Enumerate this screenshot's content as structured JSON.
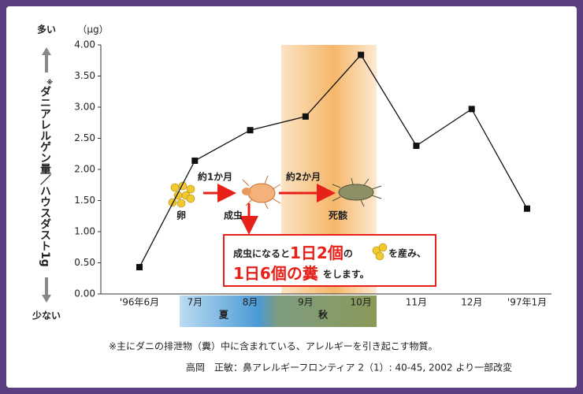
{
  "chart_data": {
    "type": "line",
    "unit_label": "（μg）",
    "top_label": "多い",
    "bottom_label": "少ない",
    "y_axis_note": "※",
    "y_axis_label": "ダニアレルゲン量／ハウスダスト1g",
    "categories": [
      "'96年6月",
      "7月",
      "8月",
      "9月",
      "10月",
      "11月",
      "12月",
      "'97年1月"
    ],
    "values": [
      0.43,
      2.14,
      2.63,
      2.85,
      3.84,
      2.38,
      2.97,
      1.37
    ],
    "color": "#111111",
    "ylim": [
      0,
      4
    ],
    "yticks": [
      {
        "value": 0,
        "label": "0.00"
      },
      {
        "value": 0.5,
        "label": "0.50"
      },
      {
        "value": 1,
        "label": "1.00"
      },
      {
        "value": 1.5,
        "label": "1.50"
      },
      {
        "value": 2,
        "label": "2.00"
      },
      {
        "value": 2.5,
        "label": "2.50"
      },
      {
        "value": 3,
        "label": "3.00"
      },
      {
        "value": 3.5,
        "label": "3.50"
      },
      {
        "value": 4,
        "label": "4.00"
      }
    ],
    "seasons": [
      "夏",
      "秋"
    ],
    "stages": [
      "卵",
      "成虫",
      "死骸"
    ],
    "durations": [
      "約1か月",
      "約2か月"
    ],
    "callout": [
      "成虫になると",
      "1日2個",
      "の",
      "を産み、",
      "1日6個の糞",
      "をします。"
    ],
    "footnotes": [
      "※主にダニの排泄物（糞）中に含まれている、アレルギーを引き起こす物質。",
      "高岡　正敏：鼻アレルギーフロンティア 2（1）: 40-45, 2002 より一部改変"
    ]
  }
}
